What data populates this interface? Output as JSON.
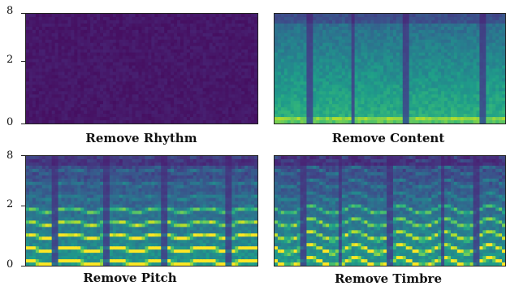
{
  "chart_data": [
    {
      "type": "heatmap",
      "title": "Remove Rhythm",
      "y_ticks": [
        "0",
        "2",
        "8"
      ],
      "ylim": [
        0,
        8
      ],
      "y_scale": "mel",
      "colormap": "viridis",
      "pattern": "uniform",
      "level": 0.04
    },
    {
      "type": "heatmap",
      "title": "Remove Content",
      "y_ticks": [
        "0",
        "2",
        "8"
      ],
      "ylim": [
        0,
        8
      ],
      "y_scale": "mel",
      "colormap": "viridis",
      "pattern": "flat-harmonics",
      "level": 0.5
    },
    {
      "type": "heatmap",
      "title": "Remove Pitch",
      "y_ticks": [
        "0",
        "2",
        "8"
      ],
      "ylim": [
        0,
        8
      ],
      "y_scale": "mel",
      "colormap": "viridis",
      "pattern": "strong-harmonics",
      "level": 0.8
    },
    {
      "type": "heatmap",
      "title": "Remove Timbre",
      "y_ticks": [
        "0",
        "2",
        "8"
      ],
      "ylim": [
        0,
        8
      ],
      "y_scale": "mel",
      "colormap": "viridis",
      "pattern": "wavy-harmonics",
      "level": 0.7
    }
  ]
}
